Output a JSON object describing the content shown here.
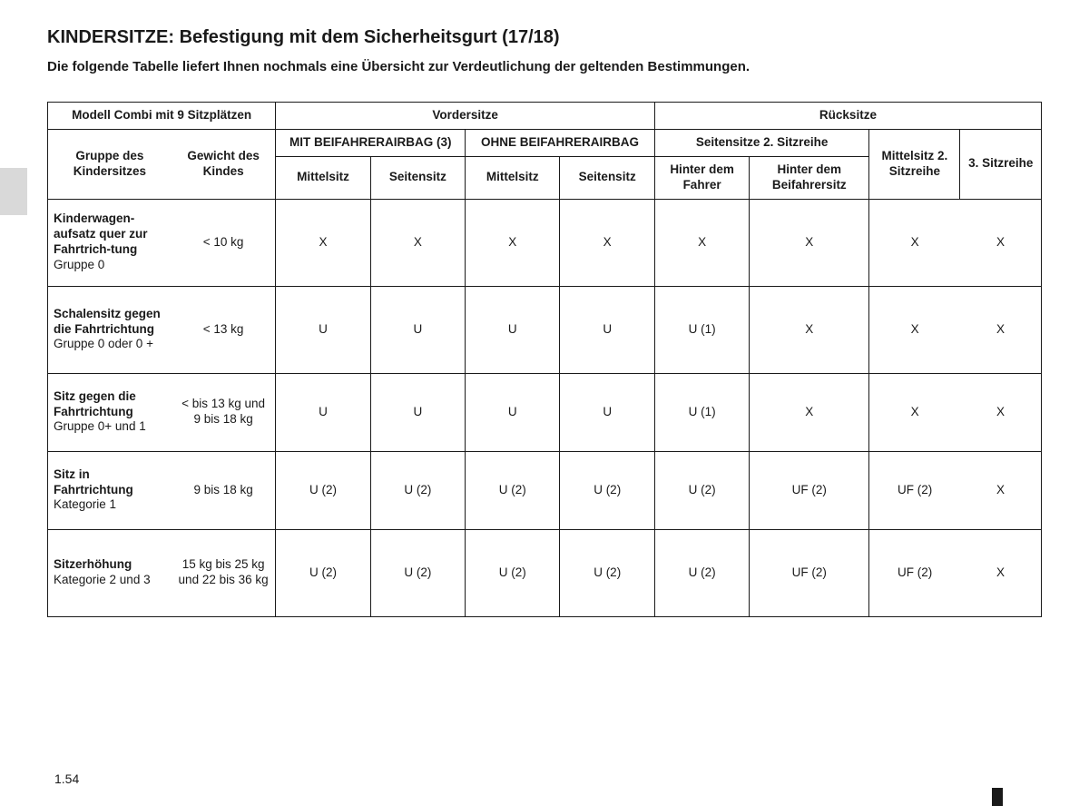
{
  "heading": {
    "main": "KINDERSITZE:",
    "sub": "Befestigung mit dem Sicherheitsgurt (17/18)"
  },
  "subtitle": "Die folgende Tabelle liefert Ihnen nochmals eine Übersicht zur Verdeutlichung der geltenden Bestimmungen.",
  "table": {
    "top_left": "Modell Combi mit 9 Sitzplätzen",
    "front_seats": "Vordersitze",
    "rear_seats": "Rücksitze",
    "group_label": "Gruppe des Kindersitzes",
    "weight_label": "Gewicht des Kindes",
    "with_airbag": "MIT BEIFAHRERAIRBAG (3)",
    "without_airbag": "OHNE BEIFAHRERAIRBAG",
    "side_row2": "Seitensitze 2. Sitzreihe",
    "center_row2": "Mittelsitz 2. Sitzreihe",
    "row3": "3. Sitzreihe",
    "center_seat": "Mittelsitz",
    "side_seat": "Seitensitz",
    "behind_driver": "Hinter dem Fahrer",
    "behind_passenger": "Hinter dem Beifahrersitz"
  },
  "rows": [
    {
      "label_bold": "Kinderwagen-aufsatz quer zur Fahrtrich-tung",
      "label_norm": "Gruppe 0",
      "weight": "< 10 kg",
      "cells": [
        "X",
        "X",
        "X",
        "X",
        "X",
        "X",
        "X",
        "X"
      ]
    },
    {
      "label_bold": "Schalensitz gegen die Fahrtrichtung",
      "label_norm": "Gruppe 0 oder 0 +",
      "weight": "< 13 kg",
      "cells": [
        "U",
        "U",
        "U",
        "U",
        "U (1)",
        "X",
        "X",
        "X"
      ]
    },
    {
      "label_bold": "Sitz gegen die Fahrtrichtung",
      "label_norm": "Gruppe 0+ und 1",
      "weight": "< bis 13 kg und 9 bis 18 kg",
      "cells": [
        "U",
        "U",
        "U",
        "U",
        "U (1)",
        "X",
        "X",
        "X"
      ]
    },
    {
      "label_bold": "Sitz in Fahrtrichtung",
      "label_norm": "Kategorie 1",
      "weight": "9 bis 18 kg",
      "cells": [
        "U (2)",
        "U (2)",
        "U (2)",
        "U (2)",
        "U (2)",
        "UF (2)",
        "UF (2)",
        "X"
      ]
    },
    {
      "label_bold": "Sitzerhöhung",
      "label_norm": "Kategorie 2 und 3",
      "weight": "15 kg bis 25 kg und 22 bis 36 kg",
      "cells": [
        "U (2)",
        "U (2)",
        "U (2)",
        "U (2)",
        "U (2)",
        "UF (2)",
        "UF (2)",
        "X"
      ]
    }
  ],
  "page_number": "1.54",
  "colors": {
    "text": "#1a1a1a",
    "border": "#1a1a1a",
    "background": "#ffffff",
    "tab": "#d9d9d9"
  }
}
